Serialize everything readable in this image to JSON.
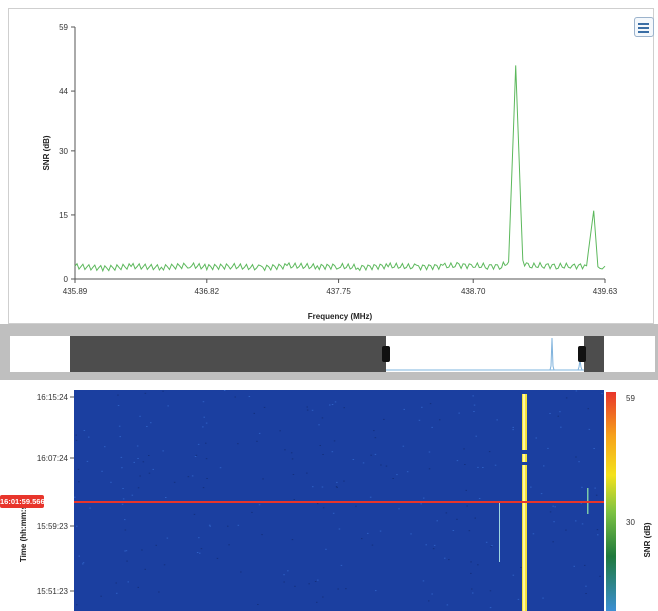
{
  "spectrum": {
    "menu_icon": "list-menu-icon",
    "x_axis_title": "Frequency (MHz)",
    "y_axis_title": "SNR (dB)",
    "x_ticks": [
      "435.89",
      "436.82",
      "437.75",
      "438.70",
      "439.63"
    ],
    "y_ticks": [
      "0",
      "15",
      "30",
      "44",
      "59"
    ],
    "line_color": "#5cb85c"
  },
  "chart_data": {
    "type": "line",
    "title": "",
    "xlabel": "Frequency (MHz)",
    "ylabel": "SNR (dB)",
    "xlim": [
      435.89,
      439.63
    ],
    "ylim": [
      0,
      59
    ],
    "series": [
      {
        "values_note_excluded": "",
        "x": [
          435.89,
          436.1,
          436.3,
          436.5,
          436.7,
          436.82,
          437.0,
          437.2,
          437.4,
          437.6,
          437.75,
          437.9,
          438.1,
          438.3,
          438.5,
          438.6,
          438.7,
          438.8,
          438.9,
          438.95,
          439.0,
          439.05,
          439.1,
          439.2,
          439.3,
          439.4,
          439.5,
          439.55,
          439.58,
          439.61,
          439.63
        ],
        "y": [
          3,
          2.5,
          3,
          2.7,
          3.2,
          2.8,
          3,
          2.6,
          3.1,
          2.9,
          3,
          2.7,
          3.1,
          2.8,
          3,
          3.2,
          3.1,
          3,
          3,
          4,
          50,
          4,
          3,
          3.2,
          3,
          3,
          3.1,
          16,
          3,
          3,
          3
        ]
      }
    ]
  },
  "waterfall": {
    "y_axis_title": "Time (hh:mm:ss)",
    "time_ticks": [
      "16:15:24",
      "16:07:24",
      "15:59:23",
      "15:51:23"
    ],
    "colorbar_title": "SNR (dB)",
    "colorbar_ticks": [
      "59",
      "30"
    ],
    "marker_time": "16:01:59.566",
    "marker_color": "#e8352b",
    "background_color": "#1a3d9c"
  },
  "overview": {
    "left_handle_icon": "range-handle-left-icon",
    "right_handle_icon": "range-handle-right-icon"
  }
}
